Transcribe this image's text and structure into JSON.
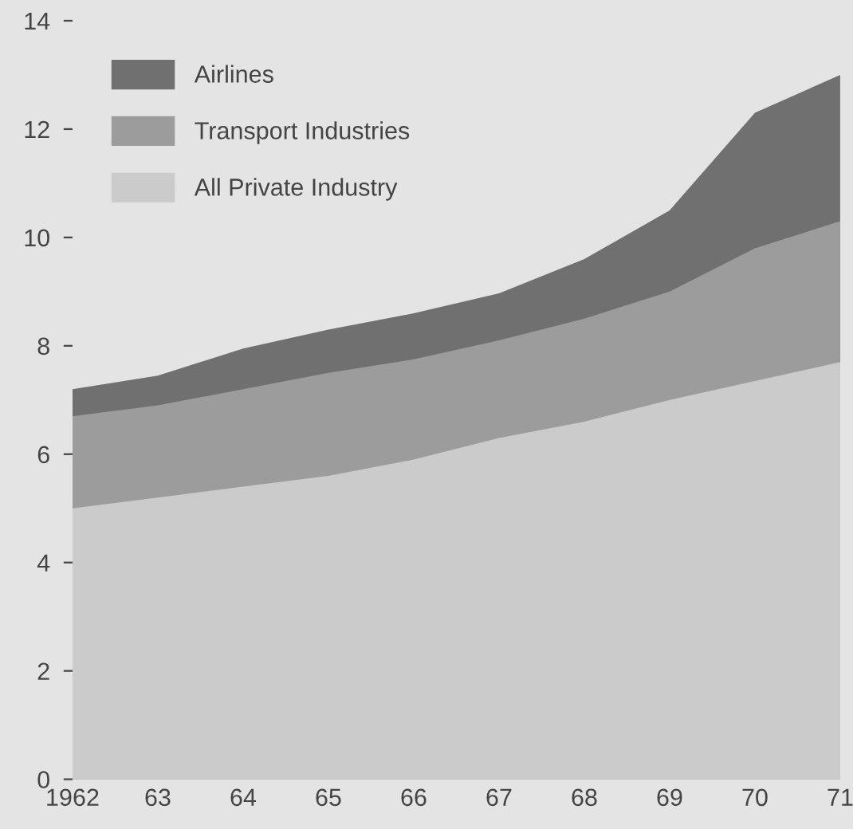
{
  "chart_data": {
    "type": "area",
    "x": [
      1962,
      1963,
      1964,
      1965,
      1966,
      1967,
      1968,
      1969,
      1970,
      1971
    ],
    "series": [
      {
        "name": "Airlines",
        "color": "#707070",
        "values": [
          7.2,
          7.45,
          7.95,
          8.3,
          8.6,
          8.97,
          9.6,
          10.5,
          12.3,
          13.0
        ]
      },
      {
        "name": "Transport Industries",
        "color": "#9c9c9c",
        "values": [
          6.7,
          6.9,
          7.2,
          7.5,
          7.75,
          8.1,
          8.5,
          9.0,
          9.8,
          10.3
        ]
      },
      {
        "name": "All Private Industry",
        "color": "#cbcbcb",
        "values": [
          5.0,
          5.2,
          5.4,
          5.6,
          5.9,
          6.3,
          6.6,
          7.0,
          7.35,
          7.7
        ]
      }
    ],
    "xlim": [
      1962,
      1971
    ],
    "ylim": [
      0,
      14
    ],
    "xticks": [
      {
        "value": 1962,
        "label": "1962"
      },
      {
        "value": 1963,
        "label": "63"
      },
      {
        "value": 1964,
        "label": "64"
      },
      {
        "value": 1965,
        "label": "65"
      },
      {
        "value": 1966,
        "label": "66"
      },
      {
        "value": 1967,
        "label": "67"
      },
      {
        "value": 1968,
        "label": "68"
      },
      {
        "value": 1969,
        "label": "69"
      },
      {
        "value": 1970,
        "label": "70"
      },
      {
        "value": 1971,
        "label": "71"
      }
    ],
    "yticks": [
      0,
      2,
      4,
      6,
      8,
      10,
      12,
      14
    ],
    "legend": "top left",
    "grid": false
  }
}
